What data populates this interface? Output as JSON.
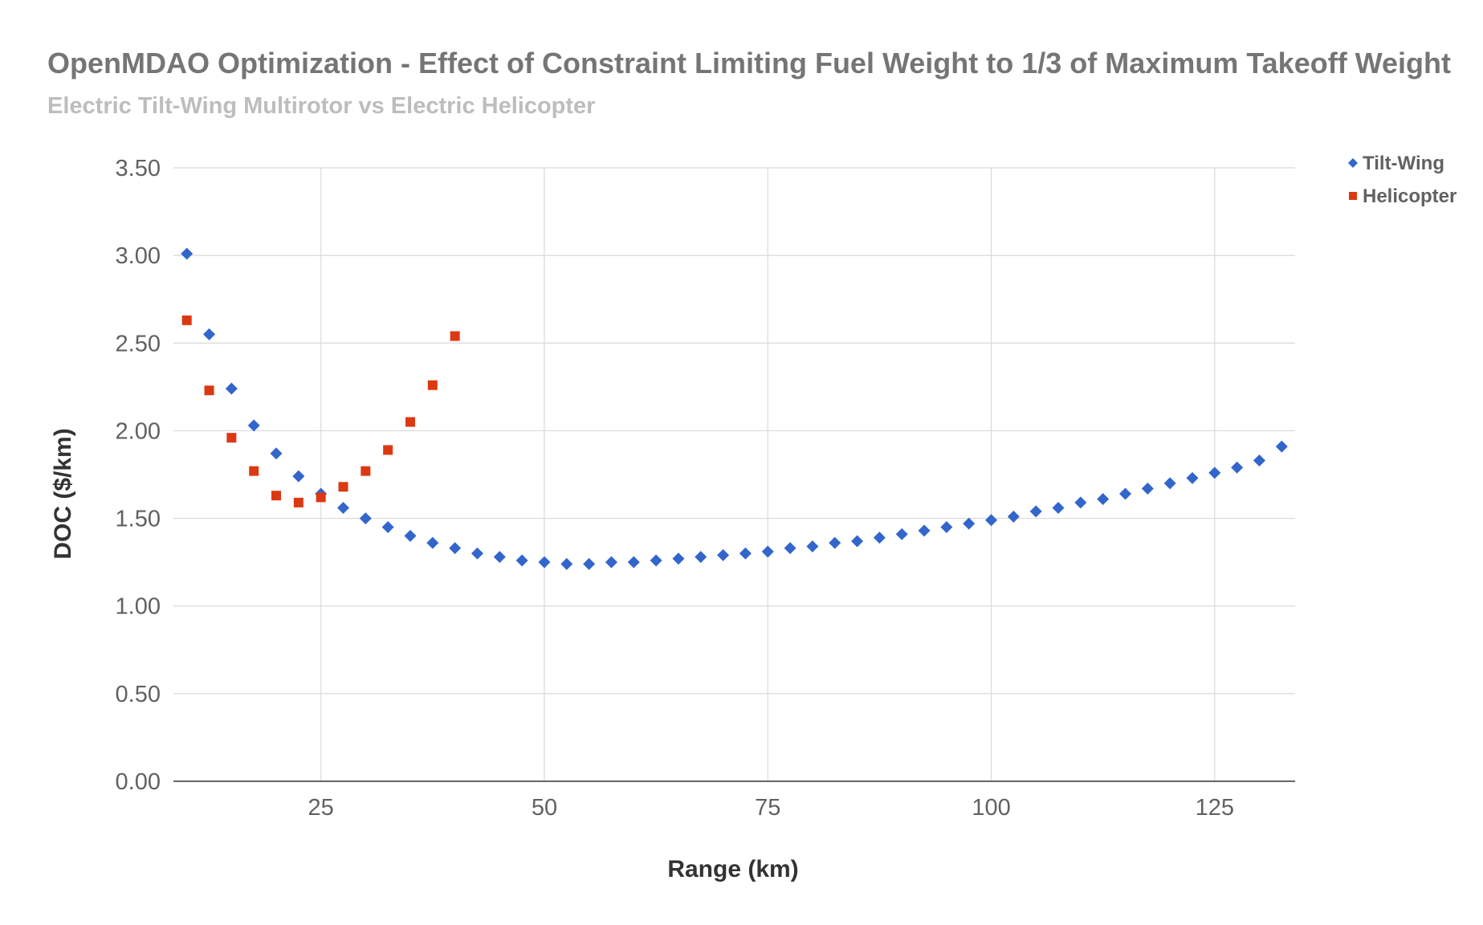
{
  "chart_data": {
    "type": "scatter",
    "title": "OpenMDAO Optimization - Effect of Constraint Limiting Fuel Weight to 1/3 of Maximum Takeoff Weight",
    "subtitle": "Electric Tilt-Wing Multirotor vs Electric Helicopter",
    "xlabel": "Range (km)",
    "ylabel": "DOC ($/km)",
    "xlim": [
      8.5,
      134
    ],
    "ylim": [
      0,
      3.5
    ],
    "x_ticks": [
      25,
      50,
      75,
      100,
      125
    ],
    "x_tick_labels": [
      "25",
      "50",
      "75",
      "100",
      "125"
    ],
    "y_ticks": [
      0,
      0.5,
      1,
      1.5,
      2,
      2.5,
      3,
      3.5
    ],
    "y_tick_labels": [
      "0.00",
      "0.50",
      "1.00",
      "1.50",
      "2.00",
      "2.50",
      "3.00",
      "3.50"
    ],
    "grid": true,
    "legend_position": "right",
    "series": [
      {
        "name": "Tilt-Wing",
        "marker": "diamond",
        "color": "#3366cc",
        "x": [
          10,
          12.5,
          15,
          17.5,
          20,
          22.5,
          25,
          27.5,
          30,
          32.5,
          35,
          37.5,
          40,
          42.5,
          45,
          47.5,
          50,
          52.5,
          55,
          57.5,
          60,
          62.5,
          65,
          67.5,
          70,
          72.5,
          75,
          77.5,
          80,
          82.5,
          85,
          87.5,
          90,
          92.5,
          95,
          97.5,
          100,
          102.5,
          105,
          107.5,
          110,
          112.5,
          115,
          117.5,
          120,
          122.5,
          125,
          127.5,
          130,
          132.5
        ],
        "y": [
          3.01,
          2.55,
          2.24,
          2.03,
          1.87,
          1.74,
          1.64,
          1.56,
          1.5,
          1.45,
          1.4,
          1.36,
          1.33,
          1.3,
          1.28,
          1.26,
          1.25,
          1.24,
          1.24,
          1.25,
          1.25,
          1.26,
          1.27,
          1.28,
          1.29,
          1.3,
          1.31,
          1.33,
          1.34,
          1.36,
          1.37,
          1.39,
          1.41,
          1.43,
          1.45,
          1.47,
          1.49,
          1.51,
          1.54,
          1.56,
          1.59,
          1.61,
          1.64,
          1.67,
          1.7,
          1.73,
          1.76,
          1.79,
          1.83,
          1.91
        ]
      },
      {
        "name": "Helicopter",
        "marker": "square",
        "color": "#dc3912",
        "x": [
          10,
          12.5,
          15,
          17.5,
          20,
          22.5,
          25,
          27.5,
          30,
          32.5,
          35,
          37.5,
          40
        ],
        "y": [
          2.63,
          2.23,
          1.96,
          1.77,
          1.63,
          1.59,
          1.62,
          1.68,
          1.77,
          1.89,
          2.05,
          2.26,
          2.54
        ]
      }
    ]
  }
}
